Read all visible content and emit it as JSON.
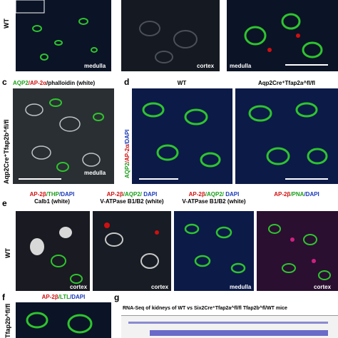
{
  "top_row": {
    "genotype": "WT",
    "labels": [
      "medulla",
      "cortex",
      "medulla"
    ]
  },
  "panel_c": {
    "letter": "c",
    "stains": [
      "AQP2",
      "/AP-2α",
      "/phalloidin (white)"
    ],
    "genotype": "Aqp2Cre⁺Tfap2b^fl/fl",
    "region": "medulla"
  },
  "panel_d": {
    "letter": "d",
    "columns": [
      "WT",
      "Aqp2Cre⁺Tfap2a^fl/fl"
    ],
    "stains": [
      "AQP2",
      "/AP-2α",
      "/DAPI"
    ]
  },
  "panel_e": {
    "letter": "e",
    "genotype": "WT",
    "columns": [
      {
        "stains": [
          "AP-2β",
          "/THP",
          "/DAPI"
        ],
        "subtitle": "Calb1 (white)",
        "region": "cortex"
      },
      {
        "stains": [
          "AP-2β",
          "/AQP2/",
          " DAPI"
        ],
        "subtitle": "V-ATPase B1/B2 (white)",
        "region": "cortex"
      },
      {
        "stains": [
          "AP-2β",
          "/AQP2/",
          " DAPI"
        ],
        "subtitle": "V-ATPase B1/B2 (white)",
        "region": "medulla"
      },
      {
        "stains": [
          "AP-2β",
          "/PNA",
          "/DAPI"
        ],
        "region": "cortex"
      }
    ]
  },
  "panel_f": {
    "letter": "f",
    "stains": [
      "AP-2β",
      "/LTL",
      "/DAPI"
    ],
    "genotype": "Tfap2b^fl/fl"
  },
  "panel_g": {
    "letter": "g",
    "title": "RNA-Seq of kidneys of WT vs Six2Cre⁺Tfap2a^fl/fl Tfap2b^fl/WT mice"
  }
}
